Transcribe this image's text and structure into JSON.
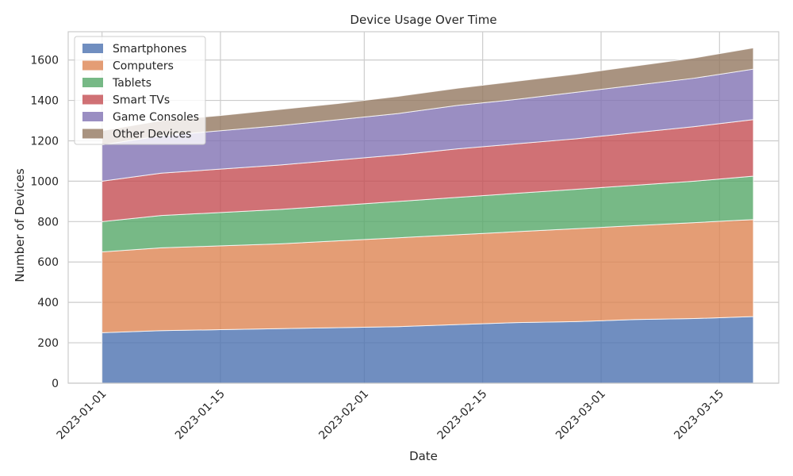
{
  "chart_data": {
    "type": "area",
    "stacked": true,
    "title": "Device Usage Over Time",
    "xlabel": "Date",
    "ylabel": "Number of Devices",
    "x": [
      "2023-01-01",
      "2023-01-08",
      "2023-01-15",
      "2023-01-22",
      "2023-01-29",
      "2023-02-05",
      "2023-02-12",
      "2023-02-19",
      "2023-02-26",
      "2023-03-05",
      "2023-03-12",
      "2023-03-19"
    ],
    "xticks": [
      "2023-01-01",
      "2023-01-15",
      "2023-02-01",
      "2023-02-15",
      "2023-03-01",
      "2023-03-15"
    ],
    "yticks": [
      0,
      200,
      400,
      600,
      800,
      1000,
      1200,
      1400,
      1600
    ],
    "ylim": [
      0,
      1740
    ],
    "xlim": [
      "2022-12-28",
      "2023-03-22"
    ],
    "grid": true,
    "legend_position": "top-left",
    "series": [
      {
        "name": "Smartphones",
        "color": "#4c72b0",
        "values": [
          250,
          260,
          265,
          270,
          275,
          280,
          290,
          300,
          305,
          315,
          320,
          330
        ]
      },
      {
        "name": "Computers",
        "color": "#dd8452",
        "values": [
          400,
          410,
          415,
          420,
          430,
          440,
          445,
          450,
          460,
          465,
          475,
          480
        ]
      },
      {
        "name": "Tablets",
        "color": "#55a868",
        "values": [
          150,
          160,
          165,
          170,
          175,
          180,
          185,
          190,
          195,
          200,
          205,
          215
        ]
      },
      {
        "name": "Smart TVs",
        "color": "#c44e52",
        "values": [
          200,
          210,
          215,
          220,
          225,
          230,
          240,
          245,
          250,
          260,
          270,
          280
        ]
      },
      {
        "name": "Game Consoles",
        "color": "#8172b3",
        "values": [
          180,
          185,
          190,
          195,
          200,
          205,
          215,
          220,
          230,
          235,
          240,
          250
        ]
      },
      {
        "name": "Other Devices",
        "color": "#937860",
        "values": [
          70,
          75,
          75,
          80,
          80,
          85,
          85,
          90,
          90,
          95,
          100,
          105
        ]
      }
    ]
  }
}
